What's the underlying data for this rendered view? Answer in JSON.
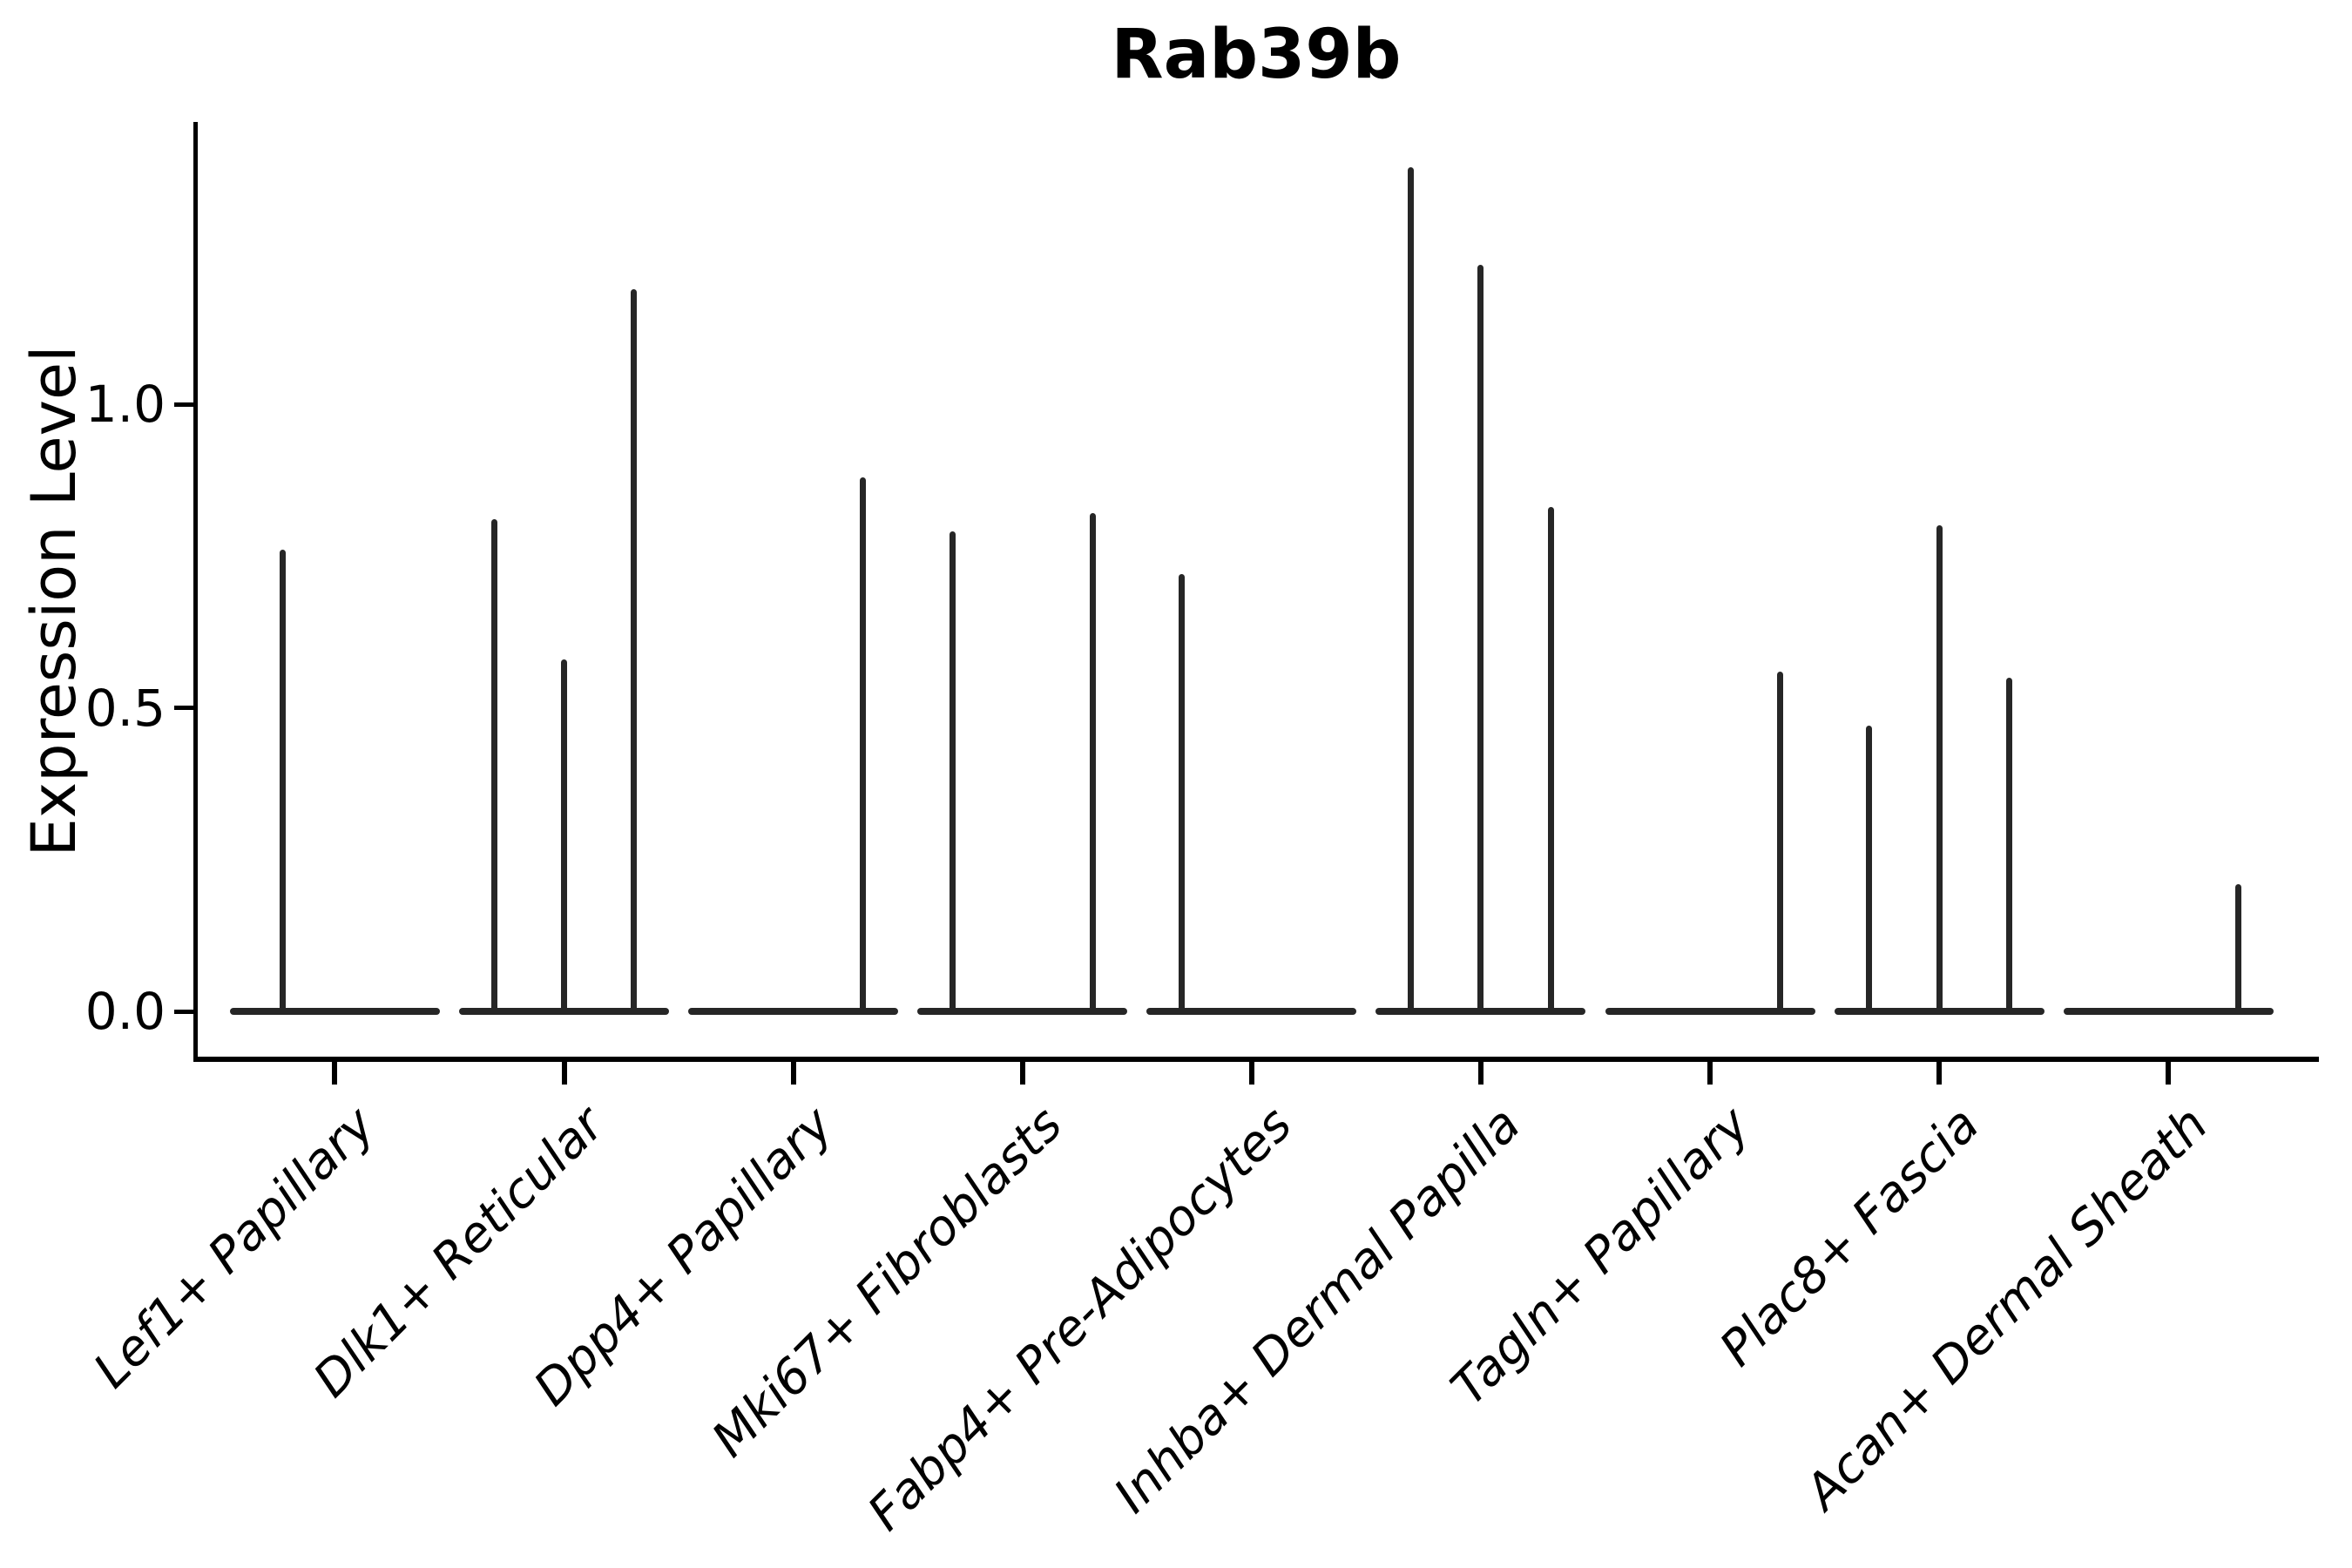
{
  "title": "Rab39b",
  "chart_data": {
    "type": "violin",
    "title": "Rab39b",
    "xlabel": "",
    "ylabel": "Expression Level",
    "ytick_labels": [
      "0.0",
      "0.5",
      "1.0"
    ],
    "ytick_values": [
      0.0,
      0.5,
      1.0
    ],
    "ylim": [
      0,
      1.47
    ],
    "grid": false,
    "legend": null,
    "categories": [
      "Lef1+ Papillary",
      "Dlk1+ Reticular",
      "Dpp4+ Papillary",
      "Mki67+ Fibroblasts",
      "Fabp4+ Pre-Adipocytes",
      "Inhba+ Dermal Papilla",
      "Tagln+ Papillary",
      "Plac8+ Fascia",
      "Acan+ Dermal Sheath"
    ],
    "groups": [
      {
        "category": "Lef1+ Papillary",
        "violin_peaks": [
          0.76,
          0
        ]
      },
      {
        "category": "Dlk1+ Reticular",
        "violin_peaks": [
          0.81,
          0.58,
          1.19
        ]
      },
      {
        "category": "Dpp4+ Papillary",
        "violin_peaks": [
          0,
          0,
          0.88
        ]
      },
      {
        "category": "Mki67+ Fibroblasts",
        "violin_peaks": [
          0.79,
          0,
          0.82
        ]
      },
      {
        "category": "Fabp4+ Pre-Adipocytes",
        "violin_peaks": [
          0.72,
          0,
          0
        ]
      },
      {
        "category": "Inhba+ Dermal Papilla",
        "violin_peaks": [
          1.39,
          1.23,
          0.83
        ]
      },
      {
        "category": "Tagln+ Papillary",
        "violin_peaks": [
          0,
          0,
          0.56
        ]
      },
      {
        "category": "Plac8+ Fascia",
        "violin_peaks": [
          0.47,
          0.8,
          0.55
        ]
      },
      {
        "category": "Acan+ Dermal Sheath",
        "violin_peaks": [
          0,
          0,
          0.21
        ]
      }
    ]
  }
}
